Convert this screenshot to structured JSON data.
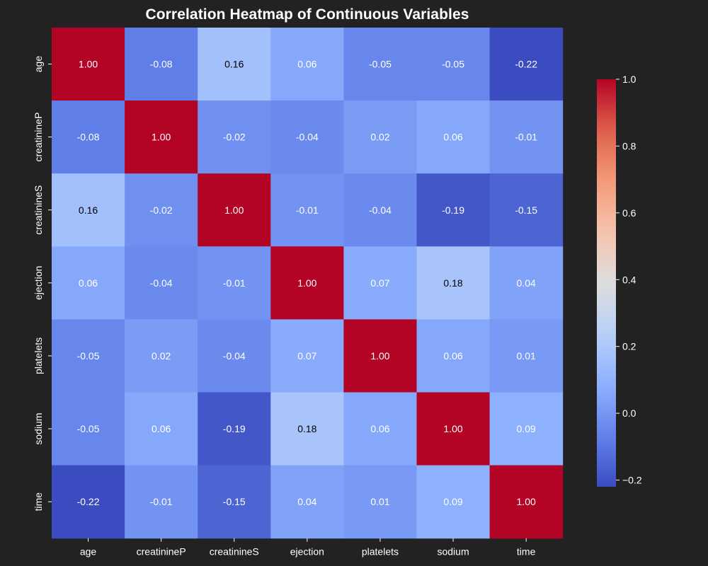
{
  "chart_data": {
    "type": "heatmap",
    "title": "Correlation Heatmap of Continuous Variables",
    "xlabel": "",
    "ylabel": "",
    "x_categories": [
      "age",
      "creatinineP",
      "creatinineS",
      "ejection",
      "platelets",
      "sodium",
      "time"
    ],
    "y_categories": [
      "age",
      "creatinineP",
      "creatinineS",
      "ejection",
      "platelets",
      "sodium",
      "time"
    ],
    "values": [
      [
        1.0,
        -0.08,
        0.16,
        0.06,
        -0.05,
        -0.05,
        -0.22
      ],
      [
        -0.08,
        1.0,
        -0.02,
        -0.04,
        0.02,
        0.06,
        -0.01
      ],
      [
        0.16,
        -0.02,
        1.0,
        -0.01,
        -0.04,
        -0.19,
        -0.15
      ],
      [
        0.06,
        -0.04,
        -0.01,
        1.0,
        0.07,
        0.18,
        0.04
      ],
      [
        -0.05,
        0.02,
        -0.04,
        0.07,
        1.0,
        0.06,
        0.01
      ],
      [
        -0.05,
        0.06,
        -0.19,
        0.18,
        0.06,
        1.0,
        0.09
      ],
      [
        -0.22,
        -0.01,
        -0.15,
        0.04,
        0.01,
        0.09,
        1.0
      ]
    ],
    "value_format": "0.00",
    "colormap": "coolwarm",
    "colorbar": {
      "vmin": -0.22,
      "vmax": 1.0,
      "ticks": [
        1.0,
        0.8,
        0.6,
        0.4,
        0.2,
        0.0,
        -0.2
      ],
      "tick_labels": [
        "1.0",
        "0.8",
        "0.6",
        "0.4",
        "0.2",
        "0.0",
        "−0.2"
      ]
    },
    "legend": "colorbar at right",
    "grid": false
  },
  "colors": {
    "background": "#222222",
    "text": "#ffffff",
    "annotation_dark_text": "#000000"
  }
}
